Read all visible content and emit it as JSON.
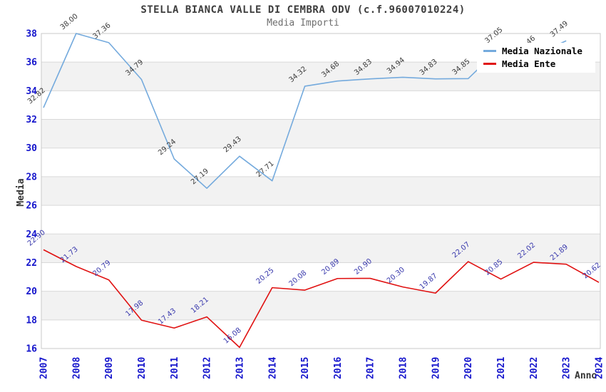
{
  "header": {
    "title": "STELLA BIANCA VALLE DI CEMBRA ODV (c.f.96007010224)",
    "subtitle": "Media Importi"
  },
  "chart_data": {
    "type": "line",
    "title": "STELLA BIANCA VALLE DI CEMBRA ODV (c.f.96007010224)",
    "subtitle": "Media Importi",
    "xlabel": "Anno",
    "ylabel": "Media",
    "ylim": [
      16,
      38
    ],
    "ytick_step": 2,
    "grid": true,
    "banded_background": true,
    "legend_position": "top-right",
    "x": [
      2007,
      2008,
      2009,
      2010,
      2011,
      2012,
      2013,
      2014,
      2015,
      2016,
      2017,
      2018,
      2019,
      2020,
      2021,
      2022,
      2023,
      2024
    ],
    "series": [
      {
        "name": "Media Nazionale",
        "color": "#74aadd",
        "label_color": "#3c3c3c",
        "values": [
          32.82,
          38.0,
          37.36,
          34.79,
          29.24,
          27.19,
          29.43,
          27.71,
          34.32,
          34.68,
          34.83,
          34.94,
          34.83,
          34.85,
          37.05,
          36.46,
          37.49,
          null
        ]
      },
      {
        "name": "Media Ente",
        "color": "#e01111",
        "label_color": "#3a3aad",
        "values": [
          22.9,
          21.73,
          20.79,
          17.98,
          17.43,
          18.21,
          16.08,
          20.25,
          20.08,
          20.89,
          20.9,
          20.3,
          19.87,
          22.07,
          20.85,
          22.02,
          21.89,
          20.62
        ]
      }
    ]
  },
  "colors": {
    "band": "#f2f2f2",
    "grid": "#d9d9d9",
    "axis": "#c9c9c9",
    "tick_label": "#1515cc"
  }
}
